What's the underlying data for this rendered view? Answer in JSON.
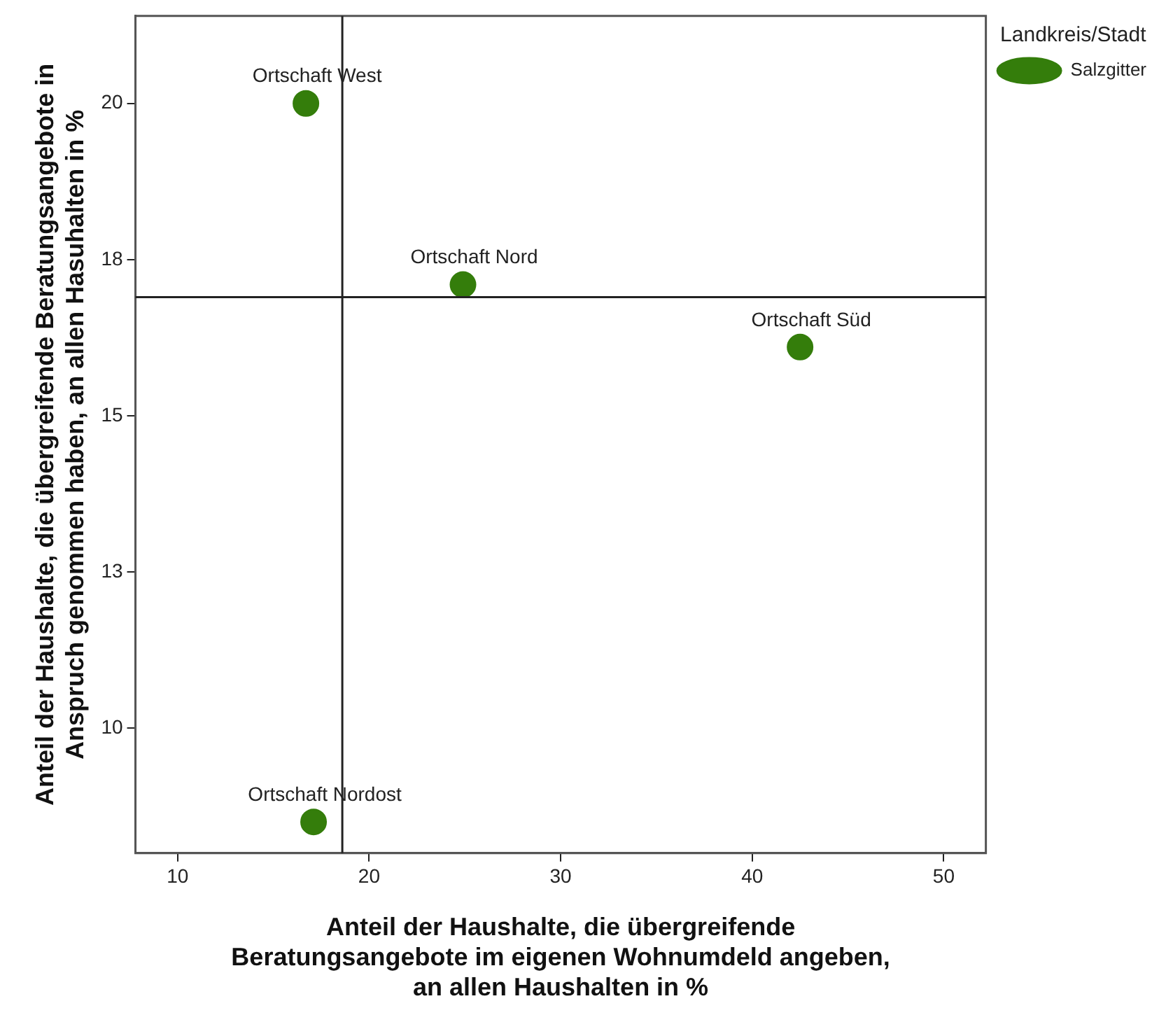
{
  "chart_data": {
    "type": "scatter",
    "xlabel": "Anteil der Haushalte, die übergreifende Beratungsangebote im eigenen Wohnumdeld angeben, an allen Haushalten in %",
    "ylabel": "Anteil der Haushalte, die übergreifende Beratungsangebote in Anspruch genommen haben, an allen Hasuhalten in %",
    "legend_title": "Landkreis/Stadt",
    "legend": "top right",
    "marker": "circle",
    "grid": false,
    "x": [
      16.7,
      24.9,
      42.5,
      17.1
    ],
    "series": [
      {
        "name": "Salzgitter",
        "color": "#347d0b",
        "values": [
          20.0,
          17.1,
          16.1,
          8.5
        ],
        "value_labels": [
          "Ortschaft West",
          "Ortschaft Nord",
          "Ortschaft Süd",
          "Ortschaft Nordost"
        ]
      }
    ],
    "xlim": [
      7.8,
      52.2
    ],
    "xticks": [
      10,
      20,
      30,
      40,
      50
    ],
    "ylim": [
      8.0,
      21.4
    ],
    "yticks": [
      10,
      {
        "value": 12.5,
        "label": "13"
      },
      15,
      {
        "value": 17.5,
        "label": "18"
      },
      20
    ],
    "ref_lines": [
      {
        "axis": "x",
        "value": 18.6
      },
      {
        "axis": "y",
        "value": 16.9
      }
    ]
  }
}
